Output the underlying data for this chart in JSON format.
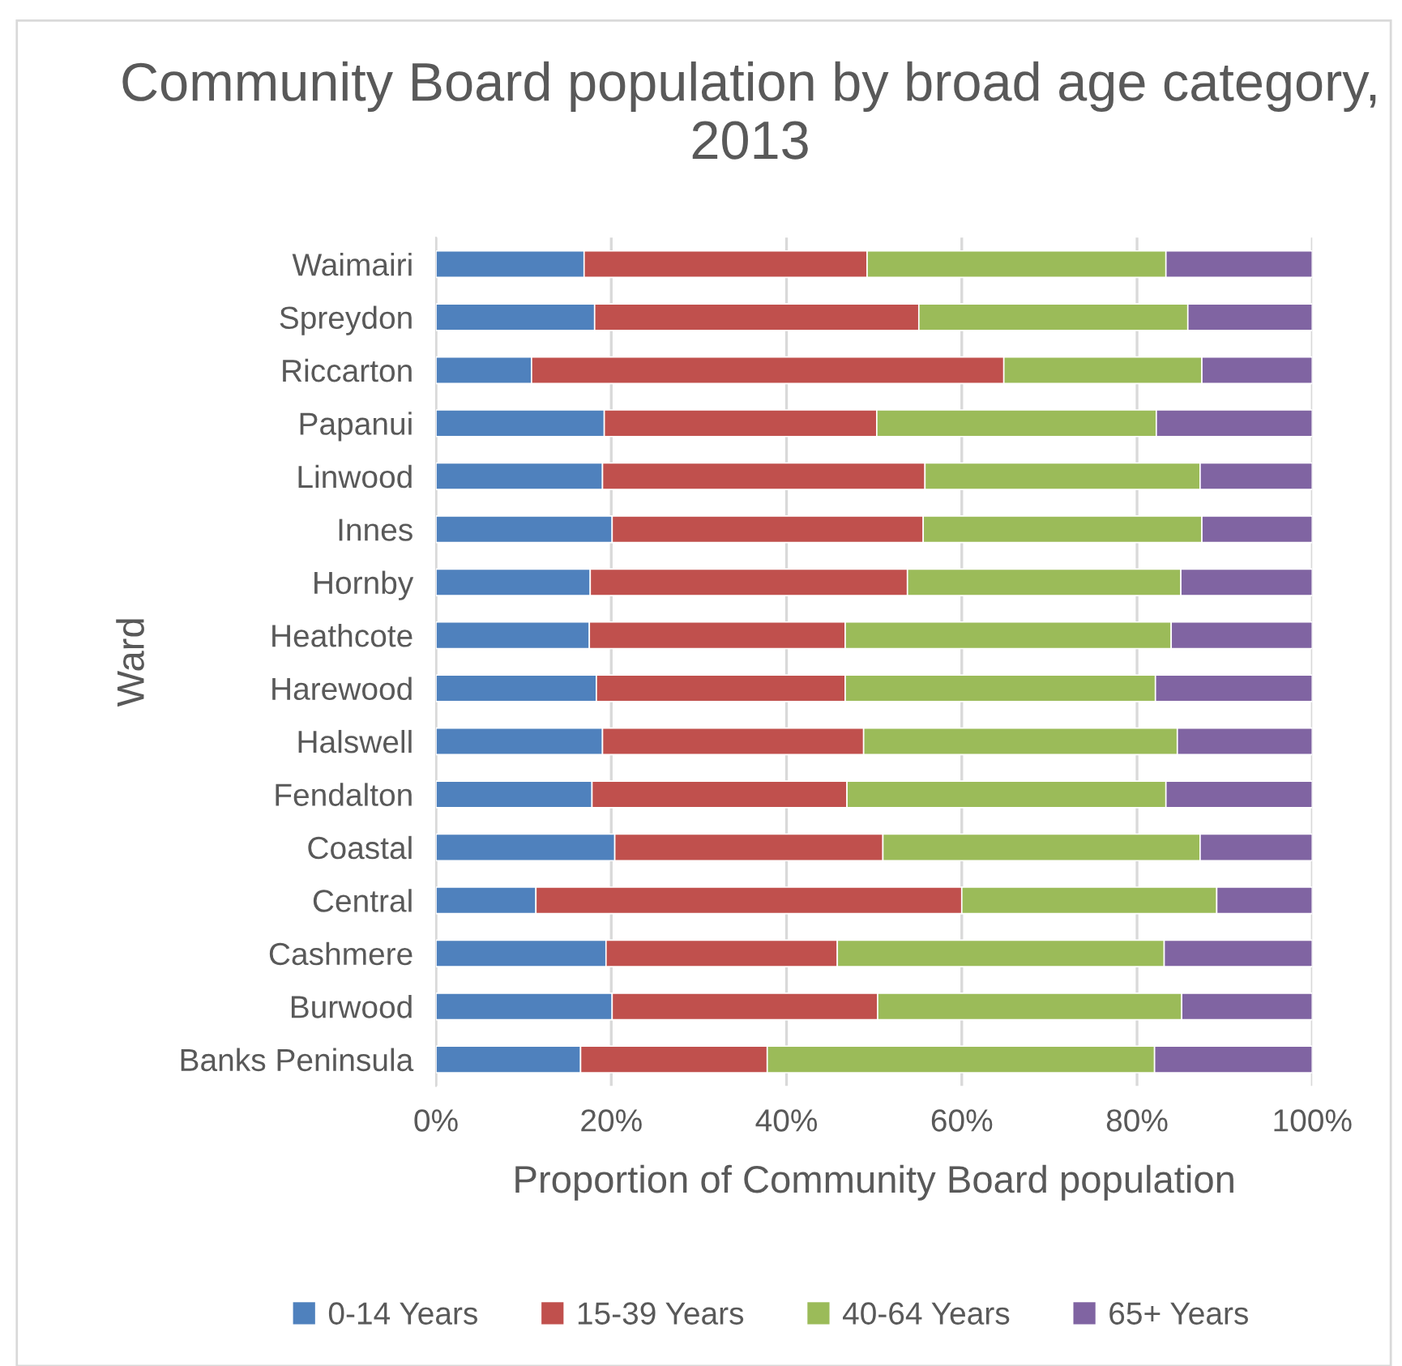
{
  "chart_data": {
    "type": "bar",
    "orientation": "horizontal",
    "stacked": true,
    "title": "Community Board population by broad age category, 2013",
    "xlabel": "Proportion of Community Board population",
    "ylabel": "Ward",
    "categories": [
      "Waimairi",
      "Spreydon",
      "Riccarton",
      "Papanui",
      "Linwood",
      "Innes",
      "Hornby",
      "Heathcote",
      "Harewood",
      "Halswell",
      "Fendalton",
      "Coastal",
      "Central",
      "Cashmere",
      "Burwood",
      "Banks Peninsula"
    ],
    "series": [
      {
        "name": "0-14 Years",
        "color": "#4f81bd",
        "values": [
          16.9,
          18.1,
          10.9,
          19.2,
          19.0,
          20.1,
          17.6,
          17.5,
          18.3,
          19.0,
          17.8,
          20.4,
          11.4,
          19.4,
          20.1,
          16.5
        ]
      },
      {
        "name": "15-39 Years",
        "color": "#c0504d",
        "values": [
          32.3,
          37.0,
          53.9,
          31.1,
          36.8,
          35.5,
          36.2,
          29.2,
          28.4,
          29.8,
          29.1,
          30.6,
          48.6,
          26.4,
          30.3,
          21.3
        ]
      },
      {
        "name": "40-64 Years",
        "color": "#9bbb59",
        "values": [
          34.1,
          30.7,
          22.6,
          31.9,
          31.4,
          31.8,
          31.2,
          37.2,
          35.4,
          35.8,
          36.4,
          36.2,
          29.1,
          37.3,
          34.7,
          44.2
        ]
      },
      {
        "name": "65+ Years",
        "color": "#8064a2",
        "values": [
          16.7,
          14.2,
          12.6,
          17.8,
          12.8,
          12.6,
          15.0,
          16.1,
          17.9,
          15.4,
          16.7,
          12.8,
          10.9,
          16.9,
          14.9,
          18.0
        ]
      }
    ],
    "xlim": [
      0,
      100
    ],
    "xticks": [
      {
        "value": 0,
        "label": "0%"
      },
      {
        "value": 20,
        "label": "20%"
      },
      {
        "value": 40,
        "label": "40%"
      },
      {
        "value": 60,
        "label": "60%"
      },
      {
        "value": 80,
        "label": "80%"
      },
      {
        "value": 100,
        "label": "100%"
      }
    ],
    "grid": "x",
    "legend": "bottom"
  }
}
